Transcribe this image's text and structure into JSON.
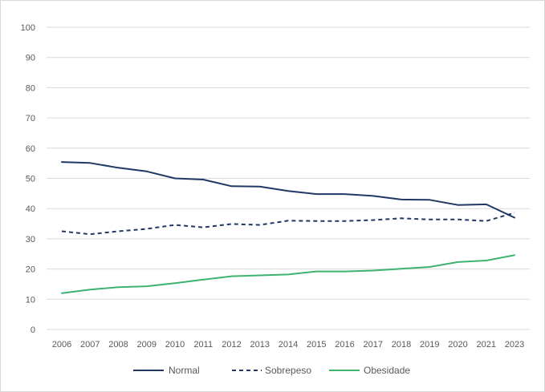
{
  "chart_data": {
    "type": "line",
    "title": "",
    "xlabel": "",
    "ylabel": "",
    "ylim": [
      0,
      100
    ],
    "yticks": [
      "0",
      "10",
      "20",
      "30",
      "40",
      "50",
      "60",
      "70",
      "80",
      "90",
      "100"
    ],
    "categories": [
      "2006",
      "2007",
      "2008",
      "2009",
      "2010",
      "2011",
      "2012",
      "2013",
      "2014",
      "2015",
      "2016",
      "2017",
      "2018",
      "2019",
      "2020",
      "2021",
      "2023"
    ],
    "grid": true,
    "legend_position": "bottom",
    "series": [
      {
        "name": "Normal",
        "color": "#1f3864",
        "dash": "solid",
        "values": [
          55.4,
          55.1,
          53.5,
          52.3,
          50.0,
          49.6,
          47.4,
          47.3,
          45.8,
          44.8,
          44.8,
          44.2,
          43.0,
          42.9,
          41.2,
          41.4,
          37.0
        ]
      },
      {
        "name": "Sobrepeso",
        "color": "#1f3864",
        "dash": "dashed",
        "values": [
          32.5,
          31.5,
          32.5,
          33.3,
          34.6,
          33.8,
          34.9,
          34.6,
          36.0,
          35.9,
          35.9,
          36.2,
          36.8,
          36.4,
          36.4,
          35.9,
          38.6
        ]
      },
      {
        "name": "Obesidade",
        "color": "#3cb371",
        "dash": "solid",
        "values": [
          12.0,
          13.2,
          14.0,
          14.3,
          15.3,
          16.5,
          17.6,
          17.9,
          18.2,
          19.2,
          19.2,
          19.5,
          20.1,
          20.7,
          22.3,
          22.8,
          24.6
        ]
      }
    ]
  }
}
